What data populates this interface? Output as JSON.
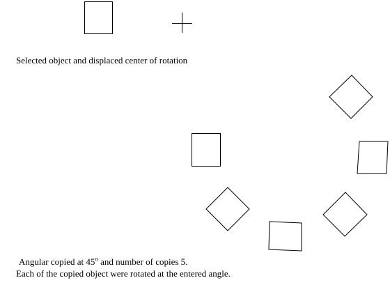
{
  "captions": {
    "selected": "Selected object and displaced center of rotation",
    "angular_copy_prefix": "Angular copied at 45",
    "degree_symbol": "o",
    "angular_copy_suffix": " and number of copies 5.",
    "rotation_note": "Each of the copied object were rotated at the entered angle."
  },
  "diagram": {
    "stroke_color": "#000000",
    "background_color": "#ffffff",
    "copy_angle_degrees": 45,
    "number_of_copies": 5
  }
}
